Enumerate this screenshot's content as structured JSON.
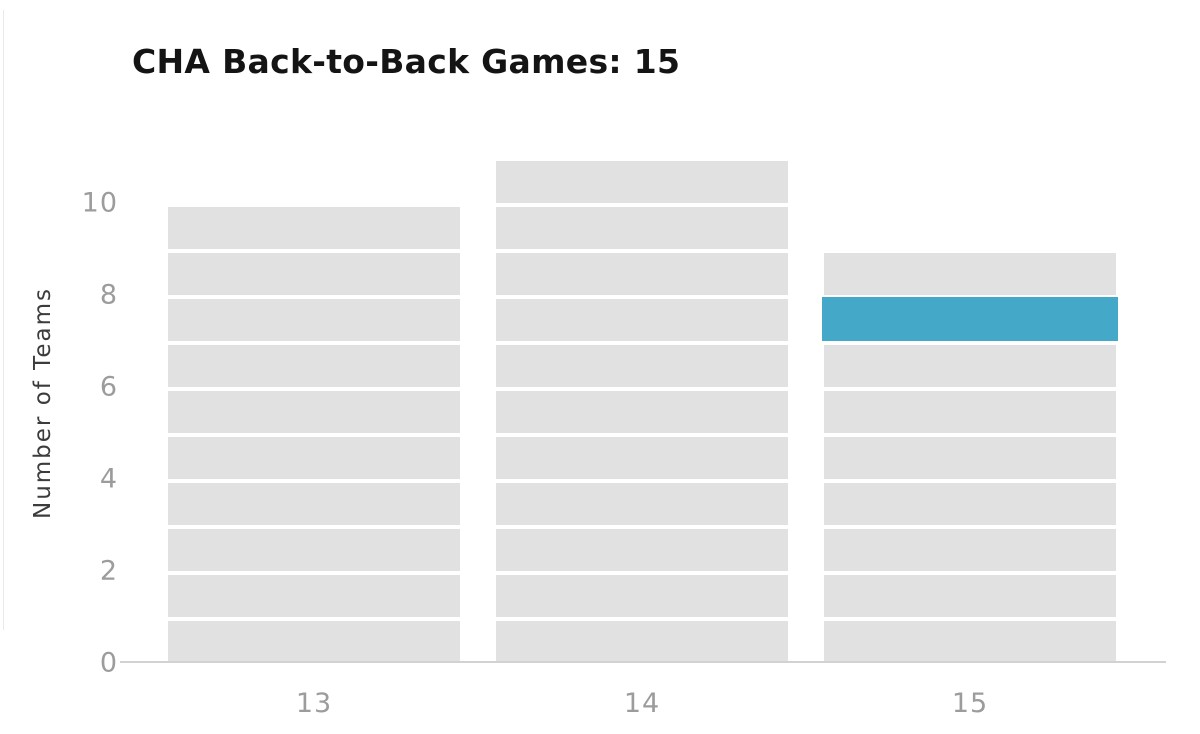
{
  "header": {
    "title": "CHA Back-to-Back Games: 15"
  },
  "chart_data": {
    "type": "bar",
    "variant": "stacked-unit-histogram",
    "title": "CHA Back-to-Back Games: 15",
    "xlabel": "",
    "ylabel": "Number of Teams",
    "categories": [
      "13",
      "14",
      "15"
    ],
    "series": [
      {
        "name": "Number of Teams",
        "values": [
          10,
          11,
          9
        ]
      }
    ],
    "ytick_labels": [
      "0",
      "2",
      "4",
      "6",
      "8",
      "10"
    ],
    "ytick_values": [
      0,
      2,
      4,
      6,
      8,
      10
    ],
    "ylim": [
      0,
      11
    ],
    "grid": false,
    "legend": null,
    "highlighted_unit": {
      "category": "15",
      "category_index": 2,
      "unit_index_from_bottom": 7,
      "value_range": [
        7,
        8
      ]
    },
    "colors": {
      "unit_block": "#e1e1e1",
      "highlight": "#44a8c9",
      "axis_line": "#d2d2d2",
      "tick_label": "#9c9c9c",
      "axis_label": "#3c3c3c",
      "title": "#141414",
      "background": "#ffffff"
    }
  }
}
